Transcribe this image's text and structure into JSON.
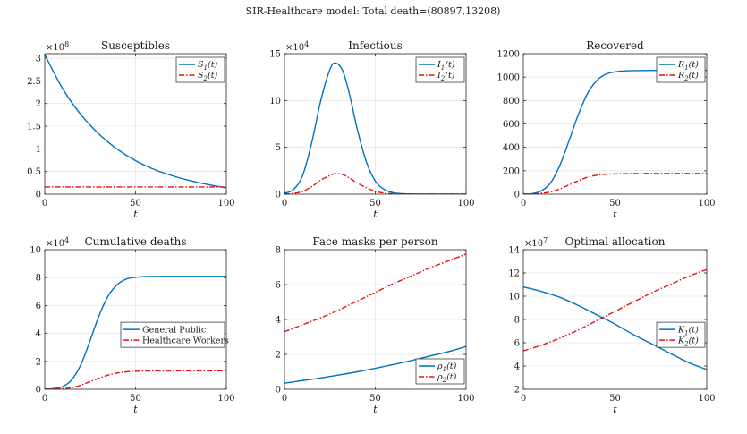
{
  "figure_title": "SIR-Healthcare model: Total death=(80897,13208)",
  "colors": {
    "s1": "#0072BD",
    "s2": "#E3121B",
    "grid": "#e6e6e6",
    "axis": "#262626"
  },
  "chart_data": [
    {
      "type": "line",
      "title": "Susceptibles",
      "xlabel": "t",
      "ylabel": "",
      "xlim": [
        0,
        100
      ],
      "ylim": [
        0,
        3.1
      ],
      "xticks": [
        0,
        50,
        100
      ],
      "yticks": [
        0,
        0.5,
        1,
        1.5,
        2,
        2.5,
        3
      ],
      "ytick_labels": [
        "0",
        "0.5",
        "1",
        "1.5",
        "2",
        "2.5",
        "3"
      ],
      "exponent": "8",
      "legend_position": "top-right",
      "legend_type": "math",
      "x": [
        0,
        10,
        20,
        30,
        40,
        50,
        60,
        70,
        80,
        90,
        100
      ],
      "series": [
        {
          "name": "S1(t)",
          "legend_main": "S",
          "legend_sub": "1",
          "legend_rest": "(t)",
          "style": "solid",
          "color_key": "s1",
          "values": [
            3.08,
            2.32,
            1.75,
            1.32,
            0.99,
            0.74,
            0.55,
            0.41,
            0.3,
            0.21,
            0.14
          ]
        },
        {
          "name": "S2(t)",
          "legend_main": "S",
          "legend_sub": "2",
          "legend_rest": "(t)",
          "style": "dashdot",
          "color_key": "s2",
          "values": [
            0.16,
            0.16,
            0.16,
            0.16,
            0.16,
            0.16,
            0.16,
            0.16,
            0.16,
            0.16,
            0.16
          ]
        }
      ]
    },
    {
      "type": "line",
      "title": "Infectious",
      "xlabel": "t",
      "ylabel": "",
      "xlim": [
        0,
        100
      ],
      "ylim": [
        0,
        15
      ],
      "xticks": [
        0,
        50,
        100
      ],
      "yticks": [
        0,
        5,
        10,
        15
      ],
      "ytick_labels": [
        "0",
        "5",
        "10",
        "15"
      ],
      "exponent": "4",
      "legend_position": "top-right",
      "legend_type": "math",
      "x": [
        0,
        5,
        10,
        15,
        20,
        25,
        28,
        32,
        36,
        40,
        45,
        50,
        55,
        60,
        65,
        70,
        80,
        90,
        100
      ],
      "series": [
        {
          "name": "I1(t)",
          "legend_main": "I",
          "legend_sub": "1",
          "legend_rest": "(t)",
          "style": "solid",
          "color_key": "s1",
          "values": [
            0.1,
            0.5,
            2.0,
            5.5,
            10.0,
            13.3,
            14.0,
            13.2,
            10.5,
            7.0,
            3.5,
            1.4,
            0.5,
            0.15,
            0.05,
            0.02,
            0,
            0,
            0
          ]
        },
        {
          "name": "I2(t)",
          "legend_main": "I",
          "legend_sub": "2",
          "legend_rest": "(t)",
          "style": "dashdot",
          "color_key": "s2",
          "values": [
            0.02,
            0.08,
            0.3,
            0.8,
            1.5,
            2.0,
            2.2,
            2.1,
            1.7,
            1.2,
            0.7,
            0.3,
            0.12,
            0.05,
            0.02,
            0.01,
            0,
            0,
            0
          ]
        }
      ]
    },
    {
      "type": "line",
      "title": "Recovered",
      "xlabel": "t",
      "ylabel": "",
      "xlim": [
        0,
        100
      ],
      "ylim": [
        0,
        1200
      ],
      "xticks": [
        0,
        50,
        100
      ],
      "yticks": [
        0,
        200,
        400,
        600,
        800,
        1000,
        1200
      ],
      "ytick_labels": [
        "0",
        "200",
        "400",
        "600",
        "800",
        "1000",
        "1200"
      ],
      "exponent": "",
      "legend_position": "top-right",
      "legend_type": "math",
      "x": [
        0,
        5,
        10,
        15,
        20,
        25,
        30,
        35,
        40,
        45,
        50,
        55,
        60,
        70,
        80,
        90,
        100
      ],
      "series": [
        {
          "name": "R1(t)",
          "legend_main": "R",
          "legend_sub": "1",
          "legend_rest": "(t)",
          "style": "solid",
          "color_key": "s1",
          "values": [
            0,
            5,
            30,
            100,
            250,
            460,
            680,
            860,
            970,
            1025,
            1045,
            1052,
            1055,
            1057,
            1058,
            1058,
            1058
          ]
        },
        {
          "name": "R2(t)",
          "legend_main": "R",
          "legend_sub": "2",
          "legend_rest": "(t)",
          "style": "dashdot",
          "color_key": "s2",
          "values": [
            0,
            2,
            8,
            20,
            45,
            80,
            115,
            145,
            162,
            170,
            173,
            175,
            176,
            177,
            177,
            177,
            177
          ]
        }
      ]
    },
    {
      "type": "line",
      "title": "Cumulative deaths",
      "xlabel": "t",
      "ylabel": "",
      "xlim": [
        0,
        100
      ],
      "ylim": [
        0,
        10
      ],
      "xticks": [
        0,
        50,
        100
      ],
      "yticks": [
        0,
        2,
        4,
        6,
        8,
        10
      ],
      "ytick_labels": [
        "0",
        "2",
        "4",
        "6",
        "8",
        "10"
      ],
      "exponent": "4",
      "legend_position": "center-right",
      "legend_type": "text",
      "x": [
        0,
        5,
        10,
        15,
        20,
        25,
        30,
        35,
        40,
        45,
        50,
        55,
        60,
        70,
        80,
        90,
        100
      ],
      "series": [
        {
          "name": "General Public",
          "style": "solid",
          "color_key": "s1",
          "values": [
            0,
            0.05,
            0.2,
            0.7,
            1.8,
            3.5,
            5.3,
            6.7,
            7.5,
            7.9,
            8.02,
            8.07,
            8.08,
            8.09,
            8.09,
            8.09,
            8.09
          ]
        },
        {
          "name": "Healthcare Workers",
          "style": "dashdot",
          "color_key": "s2",
          "values": [
            0,
            0.01,
            0.04,
            0.12,
            0.3,
            0.55,
            0.8,
            1.02,
            1.17,
            1.25,
            1.29,
            1.31,
            1.32,
            1.32,
            1.32,
            1.32,
            1.32
          ]
        }
      ]
    },
    {
      "type": "line",
      "title": "Face masks per person",
      "xlabel": "t",
      "ylabel": "",
      "xlim": [
        0,
        100
      ],
      "ylim": [
        0,
        8
      ],
      "xticks": [
        0,
        50,
        100
      ],
      "yticks": [
        0,
        2,
        4,
        6,
        8
      ],
      "ytick_labels": [
        "0",
        "2",
        "4",
        "6",
        "8"
      ],
      "exponent": "",
      "legend_position": "bottom-right",
      "legend_type": "math",
      "x": [
        0,
        10,
        20,
        30,
        40,
        50,
        60,
        70,
        80,
        90,
        100
      ],
      "series": [
        {
          "name": "ρ1(t)",
          "legend_main": "ρ",
          "legend_sub": "1",
          "legend_rest": "(t)",
          "style": "solid",
          "color_key": "s1",
          "values": [
            0.35,
            0.5,
            0.65,
            0.82,
            1.0,
            1.2,
            1.42,
            1.65,
            1.9,
            2.15,
            2.45
          ]
        },
        {
          "name": "ρ2(t)",
          "legend_main": "ρ",
          "legend_sub": "2",
          "legend_rest": "(t)",
          "style": "dashdot",
          "color_key": "s2",
          "values": [
            3.3,
            3.7,
            4.1,
            4.55,
            5.05,
            5.55,
            6.05,
            6.5,
            6.95,
            7.35,
            7.75
          ]
        }
      ]
    },
    {
      "type": "line",
      "title": "Optimal allocation",
      "xlabel": "t",
      "ylabel": "",
      "xlim": [
        0,
        100
      ],
      "ylim": [
        2,
        14
      ],
      "xticks": [
        0,
        50,
        100
      ],
      "yticks": [
        2,
        4,
        6,
        8,
        10,
        12,
        14
      ],
      "ytick_labels": [
        "2",
        "4",
        "6",
        "8",
        "10",
        "12",
        "14"
      ],
      "exponent": "7",
      "legend_position": "center-right",
      "legend_type": "math",
      "x": [
        0,
        10,
        20,
        30,
        40,
        50,
        60,
        70,
        80,
        90,
        100
      ],
      "series": [
        {
          "name": "K1(t)",
          "legend_main": "K",
          "legend_sub": "1",
          "legend_rest": "(t)",
          "style": "solid",
          "color_key": "s1",
          "values": [
            10.8,
            10.4,
            9.9,
            9.2,
            8.4,
            7.6,
            6.7,
            5.9,
            5.1,
            4.3,
            3.7
          ]
        },
        {
          "name": "K2(t)",
          "legend_main": "K",
          "legend_sub": "2",
          "legend_rest": "(t)",
          "style": "dashdot",
          "color_key": "s2",
          "values": [
            5.3,
            5.8,
            6.4,
            7.1,
            7.9,
            8.7,
            9.5,
            10.3,
            11.0,
            11.7,
            12.3
          ]
        }
      ]
    }
  ]
}
